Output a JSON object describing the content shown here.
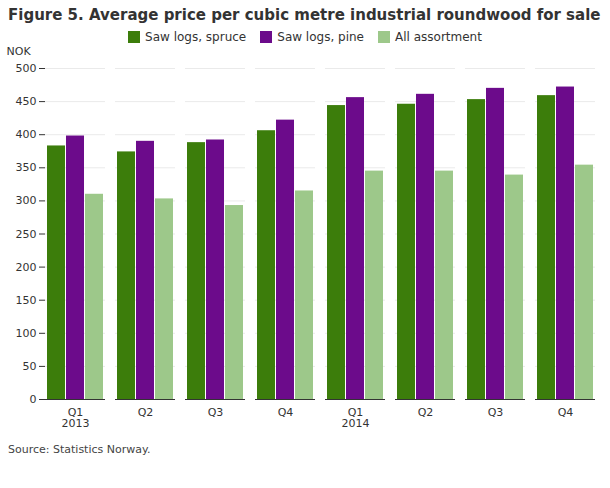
{
  "chart_data": {
    "type": "bar",
    "title": "Figure 5. Average price per cubic metre industrial roundwood for sale",
    "y_label": "NOK",
    "source": "Source: Statistics Norway.",
    "categories": [
      "Q1\n2013",
      "Q2",
      "Q3",
      "Q4",
      "Q1\n2014",
      "Q2",
      "Q3",
      "Q4"
    ],
    "series": [
      {
        "name": "Saw logs, spruce",
        "color": "#3c7d0b",
        "values": [
          383,
          374,
          388,
          406,
          444,
          446,
          453,
          459
        ]
      },
      {
        "name": "Saw logs, pine",
        "color": "#6c0b8b",
        "values": [
          398,
          390,
          392,
          422,
          456,
          461,
          470,
          472
        ]
      },
      {
        "name": "All assortment",
        "color": "#9dc88a",
        "values": [
          310,
          303,
          293,
          315,
          345,
          345,
          339,
          354
        ]
      }
    ],
    "ylim": [
      0,
      500
    ],
    "yticks": [
      0,
      50,
      100,
      150,
      200,
      250,
      300,
      350,
      400,
      450,
      500
    ],
    "grid": true,
    "legend": "top"
  }
}
